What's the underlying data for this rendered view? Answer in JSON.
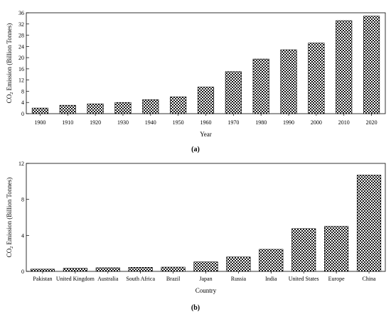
{
  "chart_data": [
    {
      "type": "bar",
      "panel_label": "(a)",
      "xlabel": "Year",
      "ylabel": "CO2 Emission (Billion Tonnes)",
      "ylabel_parts": {
        "before": "CO",
        "sub": "2",
        "after": " Emission (Billion Tonnes)"
      },
      "categories": [
        "1900",
        "1910",
        "1920",
        "1930",
        "1940",
        "1950",
        "1960",
        "1970",
        "1980",
        "1990",
        "2000",
        "2010",
        "2020"
      ],
      "values": [
        2.0,
        3.0,
        3.5,
        4.0,
        5.0,
        6.0,
        9.5,
        15.0,
        19.5,
        22.8,
        25.2,
        33.2,
        34.8
      ],
      "ylim": [
        0,
        36
      ],
      "yticks": [
        0,
        4,
        8,
        12,
        16,
        20,
        24,
        28,
        32,
        36
      ],
      "fill_pattern": "checkerboard"
    },
    {
      "type": "bar",
      "panel_label": "(b)",
      "xlabel": "Country",
      "ylabel": "CO2 Emission (Billion Tonnes)",
      "ylabel_parts": {
        "before": "CO",
        "sub": "2",
        "after": " Emission (Billion Tonnes)"
      },
      "categories": [
        "Pakistan",
        "United Kingdom",
        "Australia",
        "South Africa",
        "Brazil",
        "Japan",
        "Russia",
        "India",
        "United States",
        "Europe",
        "China"
      ],
      "values": [
        0.25,
        0.35,
        0.4,
        0.45,
        0.47,
        1.05,
        1.6,
        2.45,
        4.75,
        5.0,
        10.7
      ],
      "ylim": [
        0,
        12
      ],
      "yticks": [
        0,
        4,
        8,
        12
      ],
      "fill_pattern": "checkerboard"
    }
  ]
}
